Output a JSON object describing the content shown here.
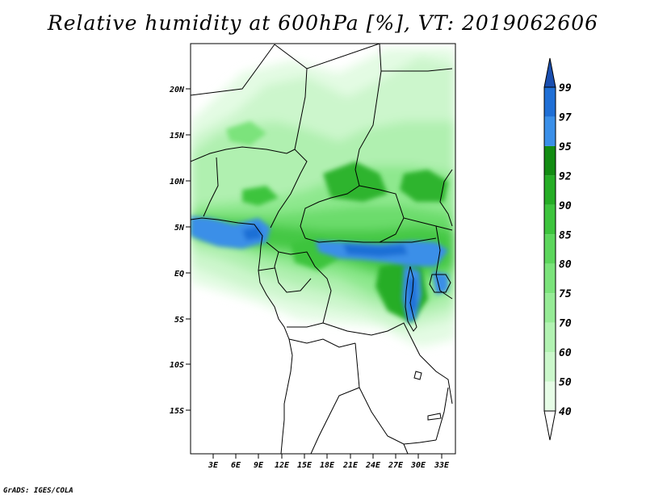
{
  "title": "Relative humidity at 600hPa [%], VT: 2019062606",
  "credit": "GrADS: IGES/COLA",
  "latitude_ticks": [
    "20N",
    "15N",
    "10N",
    "5N",
    "EQ",
    "5S",
    "10S",
    "15S"
  ],
  "longitude_ticks": [
    "3E",
    "6E",
    "9E",
    "12E",
    "15E",
    "18E",
    "21E",
    "24E",
    "27E",
    "30E",
    "33E"
  ],
  "colorbar": {
    "levels": [
      "40",
      "50",
      "60",
      "70",
      "75",
      "80",
      "85",
      "90",
      "92",
      "95",
      "97",
      "99"
    ],
    "colors": [
      "#ffffff",
      "#e6fce6",
      "#cbf7cb",
      "#b2f2b2",
      "#96eb96",
      "#7be37b",
      "#5cd65c",
      "#3dc43d",
      "#25ad25",
      "#128c12",
      "#3a8fe8",
      "#1f6fd6",
      "#1a4fb0"
    ]
  }
}
